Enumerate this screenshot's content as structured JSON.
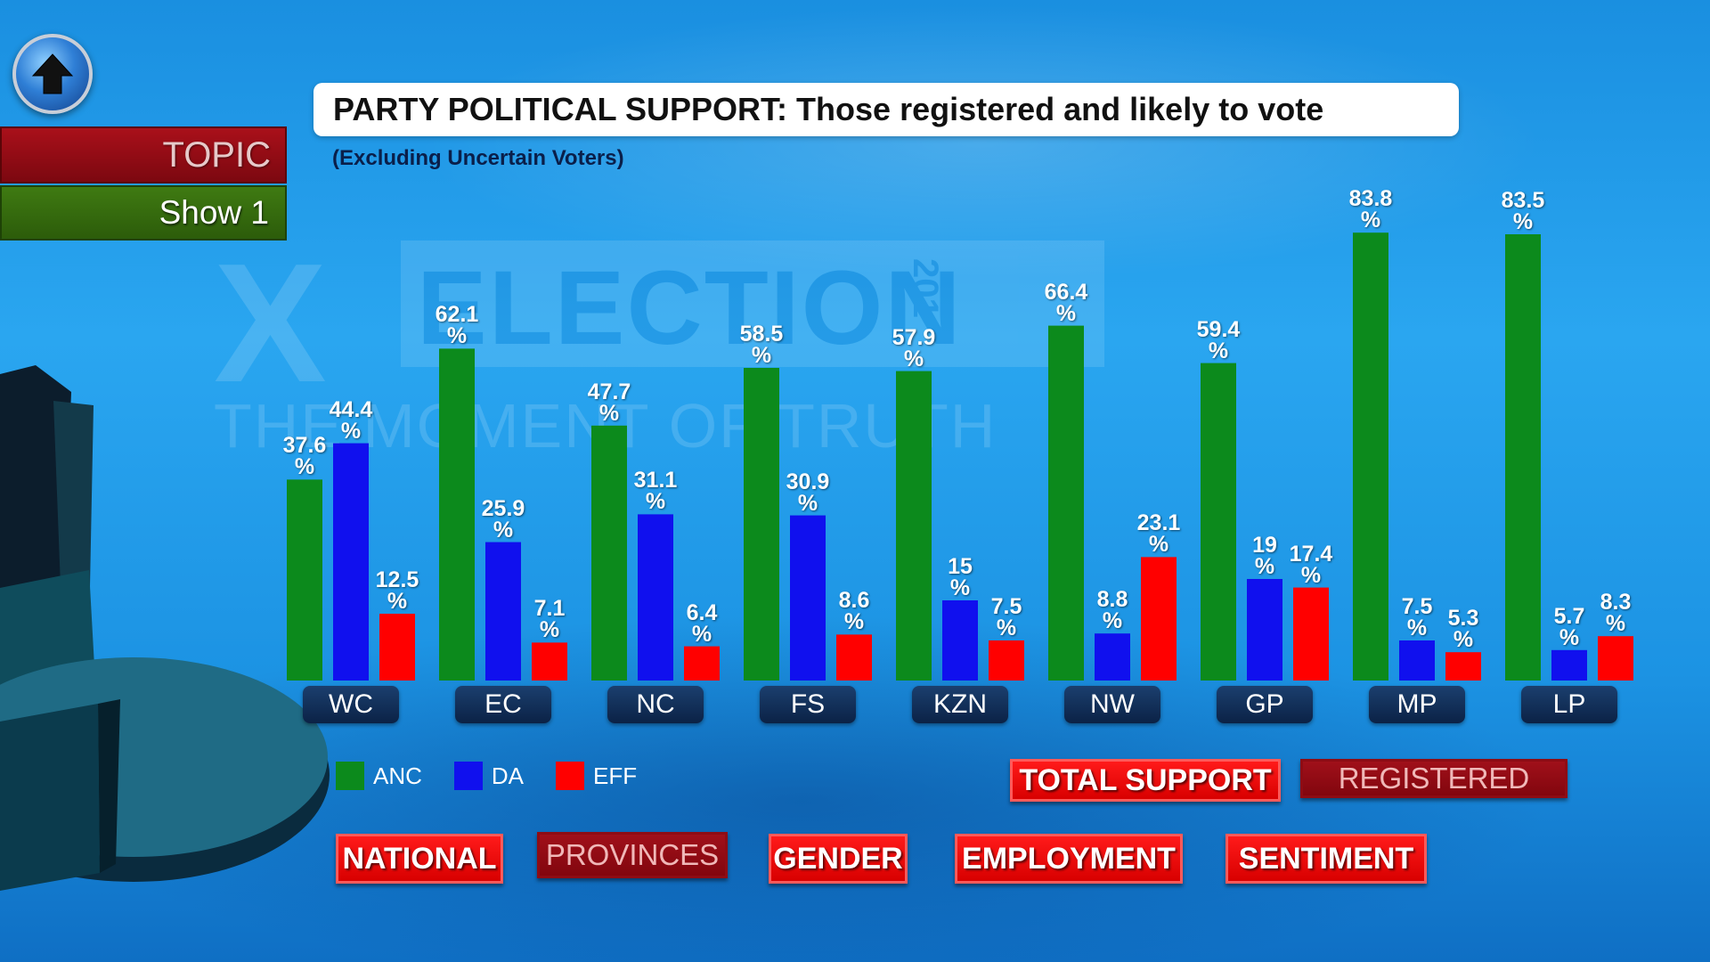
{
  "header": {
    "title": "PARTY POLITICAL SUPPORT: Those registered and likely to vote",
    "subtitle": "(Excluding Uncertain Voters)"
  },
  "topic_panel": {
    "topic_label": "TOPIC",
    "show_label": "Show 1"
  },
  "watermark": {
    "main": "ELECTION",
    "year": "201",
    "sub": "THE MOMENT OF TRUTH"
  },
  "colors": {
    "ANC": "#0c8a1c",
    "DA": "#1010ee",
    "EFF": "#ff0000"
  },
  "chart_data": {
    "type": "bar",
    "title": "PARTY POLITICAL SUPPORT: Those registered and likely to vote",
    "subtitle": "(Excluding Uncertain Voters)",
    "categories": [
      "WC",
      "EC",
      "NC",
      "FS",
      "KZN",
      "NW",
      "GP",
      "MP",
      "LP"
    ],
    "series": [
      {
        "name": "ANC",
        "values": [
          37.6,
          62.1,
          47.7,
          58.5,
          57.9,
          66.4,
          59.4,
          83.8,
          83.5
        ]
      },
      {
        "name": "DA",
        "values": [
          44.4,
          25.9,
          31.1,
          30.9,
          15,
          8.8,
          19,
          7.5,
          5.7
        ]
      },
      {
        "name": "EFF",
        "values": [
          12.5,
          7.1,
          6.4,
          8.6,
          7.5,
          23.1,
          17.4,
          5.3,
          8.3
        ]
      }
    ],
    "value_suffix": "%",
    "xlabel": "",
    "ylabel": "",
    "ylim": [
      0,
      100
    ],
    "grid": false,
    "legend_position": "bottom-left"
  },
  "buttons": {
    "total_support": "TOTAL SUPPORT",
    "registered": "REGISTERED",
    "national": "NATIONAL",
    "provinces": "PROVINCES",
    "gender": "GENDER",
    "employment": "EMPLOYMENT",
    "sentiment": "SENTIMENT"
  }
}
